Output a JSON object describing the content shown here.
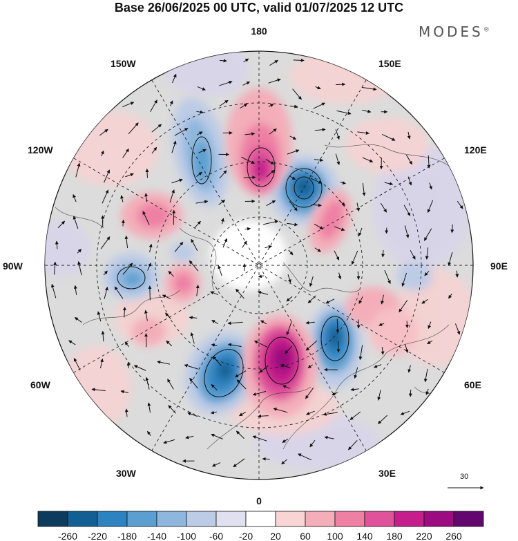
{
  "header": {
    "title": "Base 26/06/2025 00 UTC, valid 01/07/2025 12 UTC",
    "brand": "MODES",
    "brand_mark": "®"
  },
  "map": {
    "projection": "north-polar-stereographic",
    "longitude_labels": {
      "top": "180",
      "bottom": "0",
      "left": "90W",
      "right": "90E",
      "upper_left_1": "150W",
      "upper_left_2": "120W",
      "upper_right_1": "150E",
      "upper_right_2": "120E",
      "lower_left_1": "60W",
      "lower_left_2": "30W",
      "lower_right_1": "60E",
      "lower_right_2": "30E"
    },
    "reference_vector_label": "30"
  },
  "colorbar": {
    "colors": [
      "#0d3b5e",
      "#125f93",
      "#2d82c0",
      "#5a9fd0",
      "#8fb7de",
      "#bccbe6",
      "#e0e0f0",
      "#ffffff",
      "#f8d4d4",
      "#f3aeb9",
      "#ee80a4",
      "#e0529a",
      "#c41f8a",
      "#9a0c7f",
      "#64066f"
    ],
    "tick_labels": [
      "-260",
      "-220",
      "-180",
      "-140",
      "-100",
      "-60",
      "-20",
      "20",
      "60",
      "100",
      "140",
      "180",
      "220",
      "260"
    ]
  },
  "colors": {
    "land_grey": "#e6e6e6",
    "ocean_grey": "#d9d9d9"
  }
}
